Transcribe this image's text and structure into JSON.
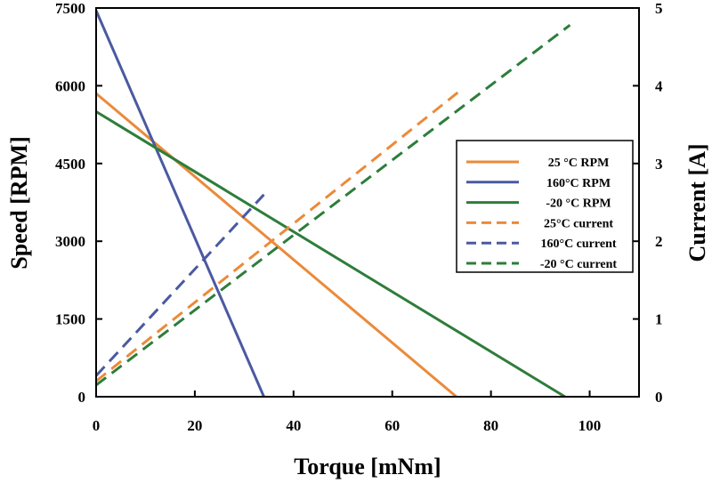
{
  "chart_data": {
    "type": "line",
    "title": "",
    "xlabel": "Torque [mNm]",
    "ylabel": "Speed [RPM]",
    "y2label": "Current [A]",
    "xlim": [
      0,
      110
    ],
    "ylim": [
      0,
      7500
    ],
    "y2lim": [
      0,
      5
    ],
    "xticks": [
      0,
      20,
      40,
      60,
      80,
      100
    ],
    "yticks": [
      0,
      1500,
      3000,
      4500,
      6000,
      7500
    ],
    "y2ticks": [
      0,
      1,
      2,
      3,
      4,
      5
    ],
    "grid": false,
    "legend_position": "right",
    "series": [
      {
        "name": "25 °C RPM",
        "axis": "left",
        "style": "solid",
        "color": "#EB8A3A",
        "x": [
          0,
          73
        ],
        "y": [
          5850,
          0
        ]
      },
      {
        "name": "160°C RPM",
        "axis": "left",
        "style": "solid",
        "color": "#4A5AA0",
        "x": [
          0,
          34
        ],
        "y": [
          7450,
          0
        ]
      },
      {
        "name": "-20 °C RPM",
        "axis": "left",
        "style": "solid",
        "color": "#2E7D3A",
        "x": [
          0,
          95
        ],
        "y": [
          5500,
          0
        ]
      },
      {
        "name": "25°C current",
        "axis": "right",
        "style": "dashed",
        "color": "#EB8A3A",
        "x": [
          0,
          74
        ],
        "y": [
          0.2,
          3.95
        ]
      },
      {
        "name": "160°C current",
        "axis": "right",
        "style": "dashed",
        "color": "#4A5AA0",
        "x": [
          0,
          34
        ],
        "y": [
          0.27,
          2.6
        ]
      },
      {
        "name": "-20 °C current",
        "axis": "right",
        "style": "dashed",
        "color": "#2E7D3A",
        "x": [
          0,
          96
        ],
        "y": [
          0.15,
          4.78
        ]
      }
    ]
  }
}
